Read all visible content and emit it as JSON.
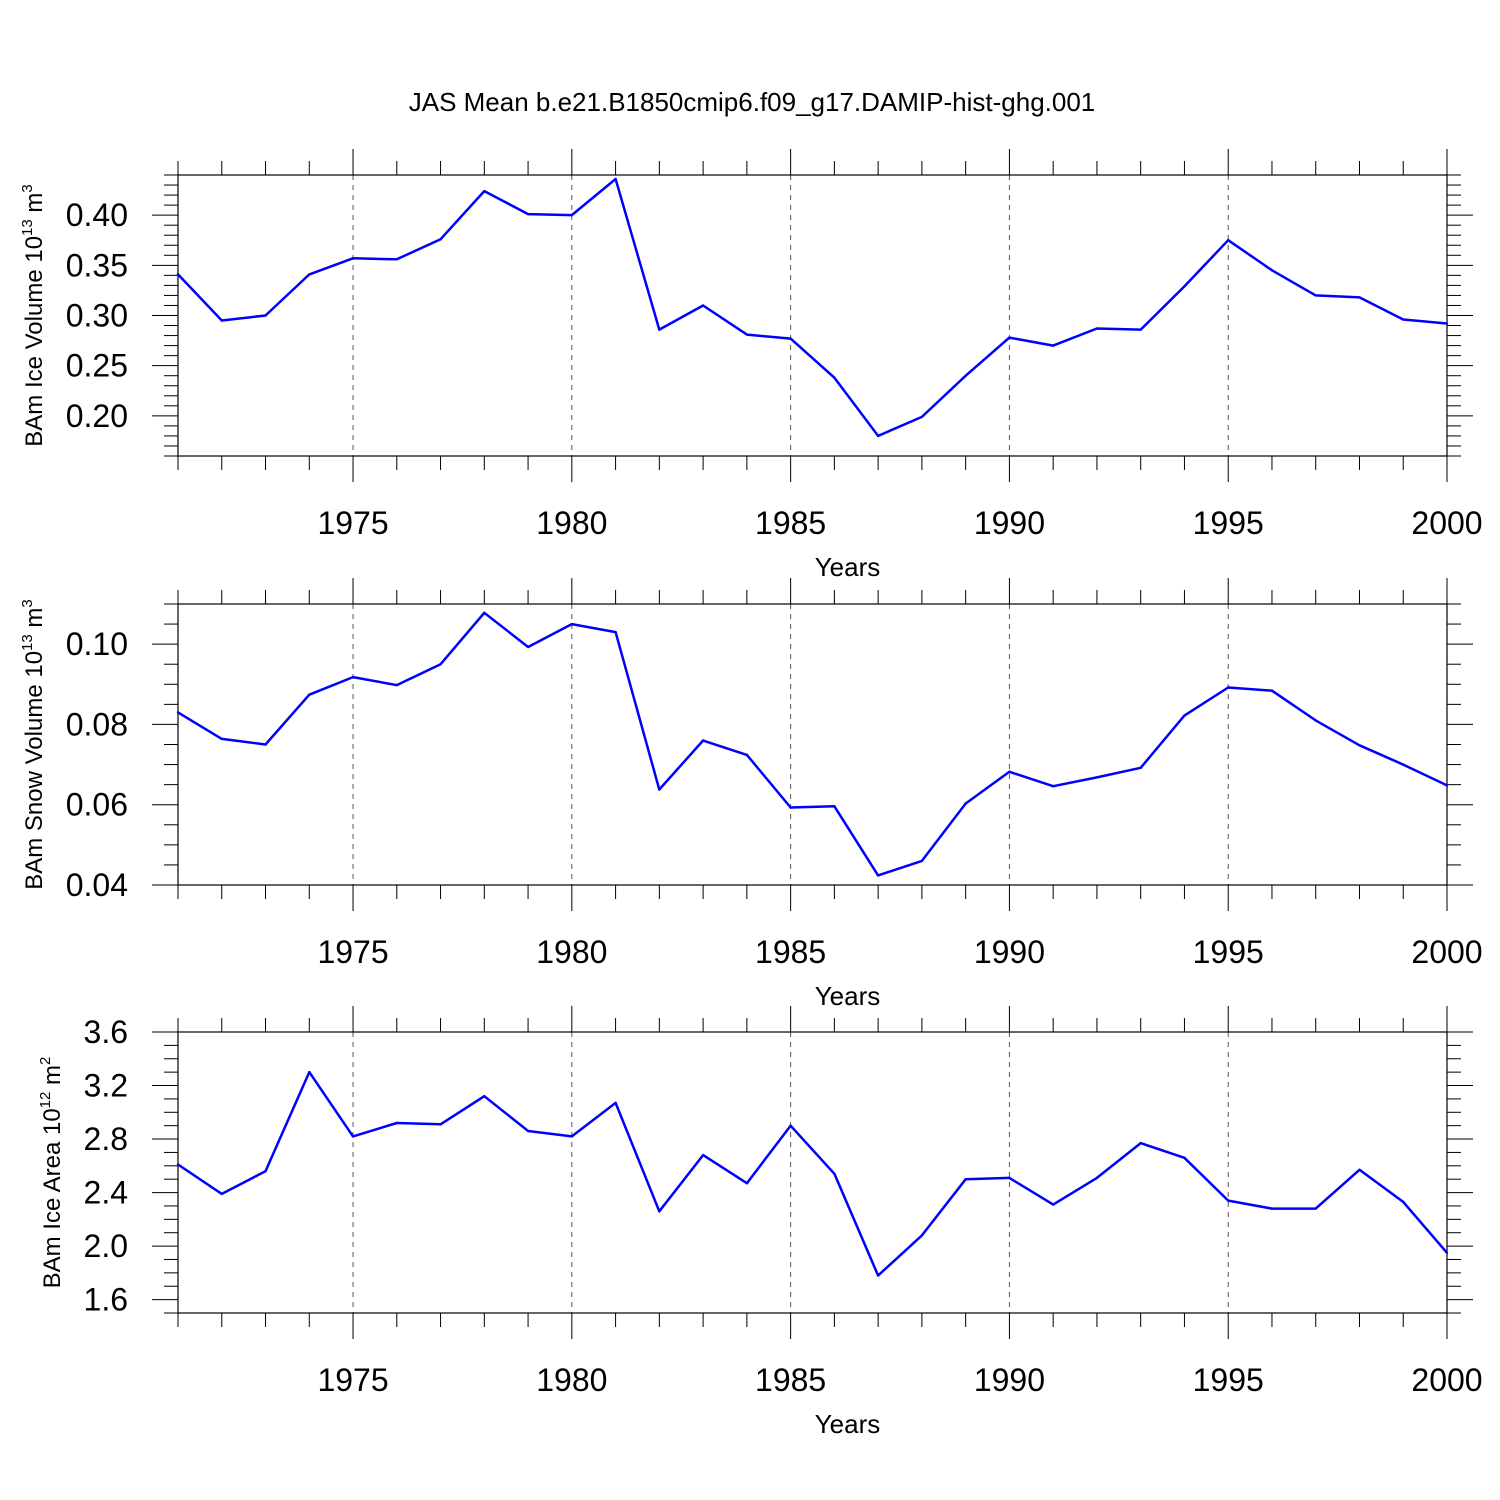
{
  "title": "JAS Mean b.e21.B1850cmip6.f09_g17.DAMIP-hist-ghg.001",
  "chart_data": [
    {
      "type": "line",
      "ylabel": {
        "main": "BAm Ice Volume 10",
        "exp": "13",
        "unit": " m",
        "unit_exp": "3"
      },
      "xlabel": "Years",
      "xlim": [
        1971,
        2000
      ],
      "ylim": [
        0.16,
        0.44
      ],
      "xticks": [
        1975,
        1980,
        1985,
        1990,
        1995,
        2000
      ],
      "yticks": [
        0.2,
        0.25,
        0.3,
        0.35,
        0.4
      ],
      "ytick_labels": [
        "0.20",
        "0.25",
        "0.30",
        "0.35",
        "0.40"
      ],
      "yminor": 0.01,
      "line_color": "#0000ff",
      "grid": "dashed vertical at major x ticks",
      "x": [
        1971,
        1972,
        1973,
        1974,
        1975,
        1976,
        1977,
        1978,
        1979,
        1980,
        1981,
        1982,
        1983,
        1984,
        1985,
        1986,
        1987,
        1988,
        1989,
        1990,
        1991,
        1992,
        1993,
        1994,
        1995,
        1996,
        1997,
        1998,
        1999,
        2000
      ],
      "y": [
        0.341,
        0.295,
        0.3,
        0.341,
        0.357,
        0.356,
        0.376,
        0.424,
        0.401,
        0.4,
        0.436,
        0.286,
        0.31,
        0.281,
        0.277,
        0.238,
        0.18,
        0.199,
        0.24,
        0.278,
        0.27,
        0.287,
        0.286,
        0.329,
        0.375,
        0.345,
        0.32,
        0.318,
        0.296,
        0.292
      ]
    },
    {
      "type": "line",
      "ylabel": {
        "main": "BAm Snow Volume 10",
        "exp": "13",
        "unit": " m",
        "unit_exp": "3"
      },
      "xlabel": "Years",
      "xlim": [
        1971,
        2000
      ],
      "ylim": [
        0.04,
        0.11
      ],
      "xticks": [
        1975,
        1980,
        1985,
        1990,
        1995,
        2000
      ],
      "yticks": [
        0.04,
        0.06,
        0.08,
        0.1
      ],
      "ytick_labels": [
        "0.04",
        "0.06",
        "0.08",
        "0.10"
      ],
      "yminor": 0.005,
      "line_color": "#0000ff",
      "grid": "dashed vertical at major x ticks",
      "x": [
        1971,
        1972,
        1973,
        1974,
        1975,
        1976,
        1977,
        1978,
        1979,
        1980,
        1981,
        1982,
        1983,
        1984,
        1985,
        1986,
        1987,
        1988,
        1989,
        1990,
        1991,
        1992,
        1993,
        1994,
        1995,
        1996,
        1997,
        1998,
        1999,
        2000
      ],
      "y": [
        0.083,
        0.0764,
        0.075,
        0.0874,
        0.0918,
        0.0898,
        0.095,
        0.1078,
        0.0993,
        0.105,
        0.103,
        0.0638,
        0.076,
        0.0724,
        0.0593,
        0.0596,
        0.0424,
        0.046,
        0.0603,
        0.0682,
        0.0646,
        0.0668,
        0.0692,
        0.0822,
        0.0892,
        0.0884,
        0.081,
        0.0748,
        0.07,
        0.0648
      ]
    },
    {
      "type": "line",
      "ylabel": {
        "main": "BAm Ice Area 10",
        "exp": "12",
        "unit": " m",
        "unit_exp": "2"
      },
      "xlabel": "Years",
      "xlim": [
        1971,
        2000
      ],
      "ylim": [
        1.5,
        3.6
      ],
      "xticks": [
        1975,
        1980,
        1985,
        1990,
        1995,
        2000
      ],
      "yticks": [
        1.6,
        2.0,
        2.4,
        2.8,
        3.2,
        3.6
      ],
      "ytick_labels": [
        "1.6",
        "2.0",
        "2.4",
        "2.8",
        "3.2",
        "3.6"
      ],
      "yminor": 0.1,
      "line_color": "#0000ff",
      "grid": "dashed vertical at major x ticks",
      "x": [
        1971,
        1972,
        1973,
        1974,
        1975,
        1976,
        1977,
        1978,
        1979,
        1980,
        1981,
        1982,
        1983,
        1984,
        1985,
        1986,
        1987,
        1988,
        1989,
        1990,
        1991,
        1992,
        1993,
        1994,
        1995,
        1996,
        1997,
        1998,
        1999,
        2000
      ],
      "y": [
        2.61,
        2.39,
        2.56,
        3.3,
        2.82,
        2.92,
        2.91,
        3.12,
        2.86,
        2.82,
        3.07,
        2.26,
        2.68,
        2.47,
        2.9,
        2.54,
        1.78,
        2.08,
        2.5,
        2.51,
        2.31,
        2.51,
        2.77,
        2.66,
        2.34,
        2.28,
        2.28,
        2.57,
        2.33,
        1.95
      ]
    }
  ]
}
